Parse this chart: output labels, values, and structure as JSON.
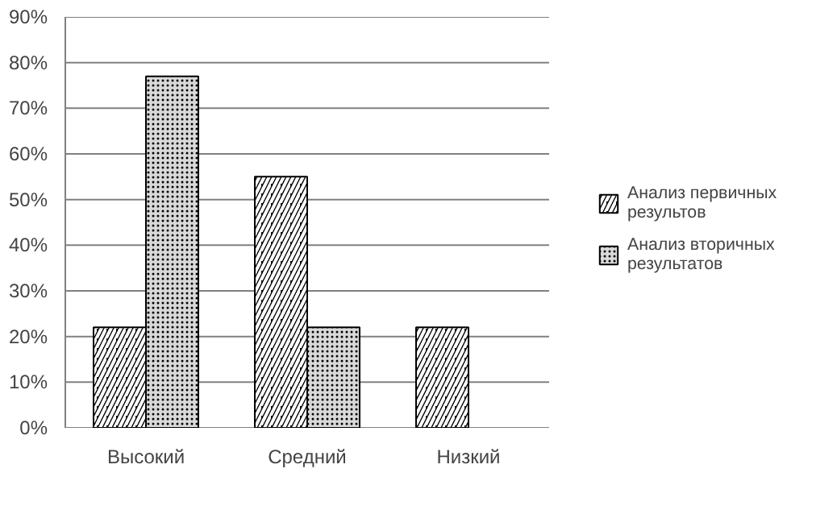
{
  "chart_data": {
    "type": "bar",
    "categories": [
      "Высокий",
      "Средний",
      "Низкий"
    ],
    "series": [
      {
        "name": "Анализ первичных результов",
        "color": "#000000",
        "values": [
          22,
          55,
          22
        ]
      },
      {
        "name": "Анализ вторичных результатов",
        "color": "#d9d9d9",
        "values": [
          77,
          22,
          null
        ]
      }
    ],
    "ylim": [
      0,
      90
    ],
    "yticks": [
      {
        "value": 0,
        "label": "0%"
      },
      {
        "value": 10,
        "label": "10%"
      },
      {
        "value": 20,
        "label": "20%"
      },
      {
        "value": 30,
        "label": "30%"
      },
      {
        "value": 40,
        "label": "40%"
      },
      {
        "value": 50,
        "label": "50%"
      },
      {
        "value": 60,
        "label": "60%"
      },
      {
        "value": 70,
        "label": "70%"
      },
      {
        "value": 80,
        "label": "80%"
      },
      {
        "value": 90,
        "label": "90%"
      }
    ],
    "grid": "y",
    "legend": "right"
  }
}
